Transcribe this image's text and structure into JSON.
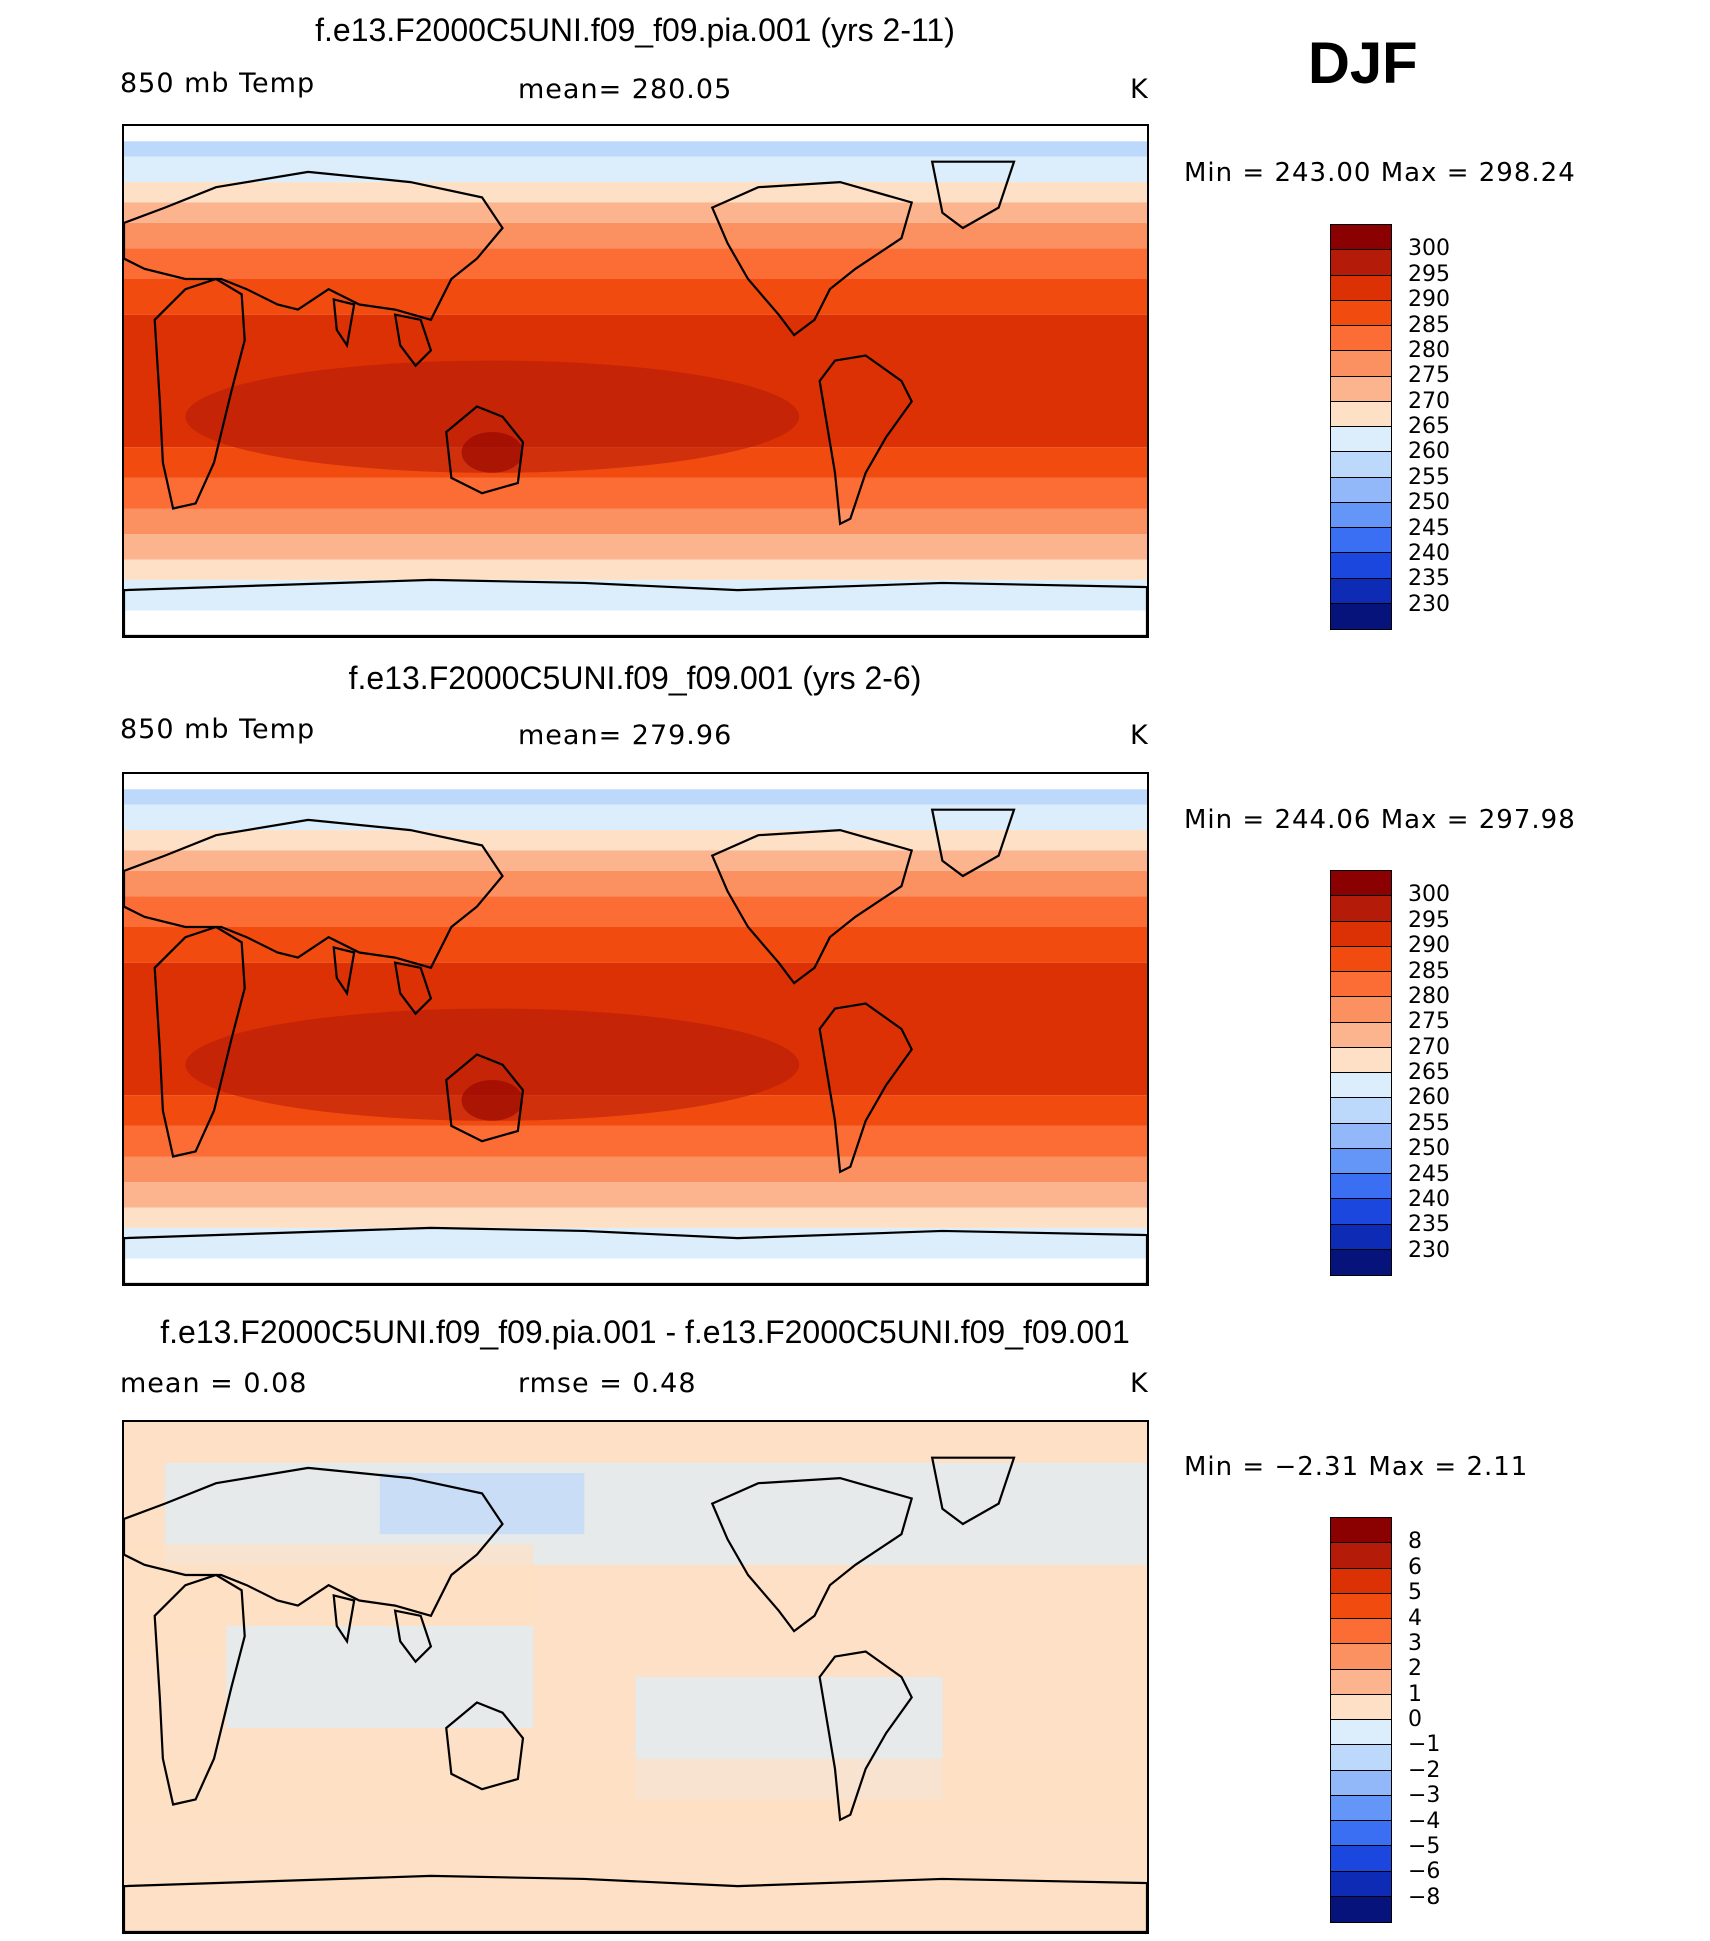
{
  "season": "DJF",
  "panels": [
    {
      "title": "f.e13.F2000C5UNI.f09_f09.pia.001 (yrs 2-11)",
      "left_label": "850 mb Temp",
      "center_label": "mean=  280.05",
      "units": "K",
      "minmax": "Min  =  243.00  Max  =  298.24",
      "field": "abs"
    },
    {
      "title": "f.e13.F2000C5UNI.f09_f09.001 (yrs 2-6)",
      "left_label": "850 mb Temp",
      "center_label": "mean=  279.96",
      "units": "K",
      "minmax": "Min  =  244.06  Max  =  297.98",
      "field": "abs"
    },
    {
      "title": "f.e13.F2000C5UNI.f09_f09.pia.001 - f.e13.F2000C5UNI.f09_f09.001",
      "left_label": "mean =     0.08",
      "center_label": "rmse =     0.48",
      "units": "K",
      "minmax": "Min  =    −2.31  Max  =     2.11",
      "field": "diff"
    }
  ],
  "colorbars": {
    "abs": {
      "labels": [
        "300",
        "295",
        "290",
        "285",
        "280",
        "275",
        "270",
        "265",
        "260",
        "255",
        "250",
        "245",
        "240",
        "235",
        "230"
      ],
      "colors": [
        "#8b0000",
        "#b41b08",
        "#dc3005",
        "#f24b10",
        "#fb6d34",
        "#fb9060",
        "#fcb48e",
        "#fde0c5",
        "#dceefb",
        "#bcd8fb",
        "#93b8fa",
        "#6496f8",
        "#3a6ff3",
        "#1c47df",
        "#0d2bb4",
        "#06137a"
      ]
    },
    "diff": {
      "labels": [
        "8",
        "6",
        "5",
        "4",
        "3",
        "2",
        "1",
        "0",
        "−1",
        "−2",
        "−3",
        "−4",
        "−5",
        "−6",
        "−8"
      ],
      "colors": [
        "#8b0000",
        "#b41b08",
        "#dc3005",
        "#f24b10",
        "#fb6d34",
        "#fb9060",
        "#fcb48e",
        "#fde0c5",
        "#dceefb",
        "#bcd8fb",
        "#93b8fa",
        "#6496f8",
        "#3a6ff3",
        "#1c47df",
        "#0d2bb4",
        "#06137a"
      ]
    }
  }
}
